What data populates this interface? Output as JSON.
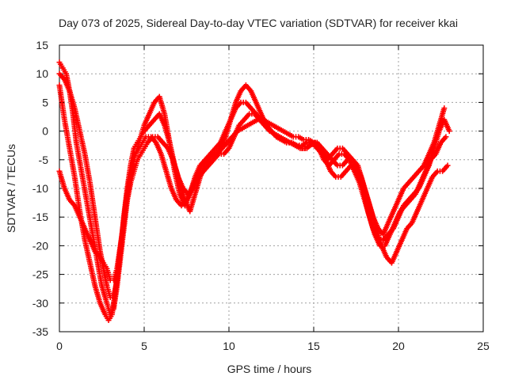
{
  "chart_data": {
    "type": "scatter",
    "title": "Day 073 of 2025, Sidereal Day-to-day VTEC variation (SDTVAR) for receiver kkai",
    "xlabel": "GPS time / hours",
    "ylabel": "SDTVAR / TECUs",
    "xlim": [
      0,
      25
    ],
    "ylim": [
      -35,
      15
    ],
    "xticks": [
      "0",
      "5",
      "10",
      "15",
      "20",
      "25"
    ],
    "yticks": [
      "-35",
      "-30",
      "-25",
      "-20",
      "-15",
      "-10",
      "-5",
      "0",
      "5",
      "10",
      "15"
    ],
    "grid": true,
    "marker": "plus",
    "color": "#ff0000",
    "series": [
      {
        "x": [
          0.0,
          0.3,
          0.6,
          0.9,
          1.2,
          1.5,
          1.8,
          2.1,
          2.4,
          2.7,
          2.9,
          3.1,
          3.3,
          3.5,
          3.7,
          3.9,
          4.1,
          4.3,
          4.5,
          4.7,
          4.9,
          5.1,
          5.4,
          5.7,
          6.0,
          6.3,
          6.6,
          6.9,
          7.2,
          7.5,
          7.8,
          8.1,
          8.4,
          8.7,
          9.0,
          9.3,
          9.6,
          9.9,
          10.2,
          10.5,
          10.8,
          11.1,
          11.4,
          11.7,
          12.0,
          12.3,
          12.6,
          12.9,
          13.2,
          13.5,
          13.8,
          14.1,
          14.4,
          14.7,
          15.0,
          15.3,
          15.6,
          15.9,
          16.2,
          16.5,
          16.8,
          17.1,
          17.4,
          17.7,
          18.0,
          18.3,
          18.6,
          18.9,
          19.2,
          19.5,
          19.8,
          20.1,
          20.4,
          20.7,
          21.0,
          21.3,
          21.6,
          21.9,
          22.2,
          22.5,
          22.8
        ],
        "y": [
          8,
          2,
          -3,
          -8,
          -14,
          -19,
          -23,
          -27,
          -30,
          -32,
          -33,
          -32,
          -28,
          -23,
          -18,
          -13,
          -9,
          -6,
          -4,
          -3,
          -2,
          -1,
          -1,
          -2,
          -4,
          -7,
          -10,
          -12,
          -13,
          -12,
          -10,
          -8,
          -6,
          -5,
          -4,
          -4,
          -3,
          -2,
          -1,
          0,
          0.5,
          1,
          1.5,
          2,
          2,
          1.5,
          1,
          0.5,
          0,
          -0.5,
          -1,
          -1,
          -1.5,
          -1.5,
          -2,
          -3,
          -5,
          -6,
          -5,
          -4,
          -4,
          -5,
          -7,
          -9,
          -12,
          -15,
          -18,
          -20,
          -20,
          -18,
          -16,
          -14,
          -13,
          -12,
          -11,
          -9,
          -7,
          -5,
          -4,
          -2,
          -1
        ]
      },
      {
        "x": [
          0.0,
          0.2,
          0.4,
          0.6,
          0.8,
          1.0,
          1.3,
          1.6,
          1.9,
          2.2,
          2.5,
          2.8,
          3.0,
          3.2,
          3.4,
          3.6,
          3.8,
          4.0,
          4.2,
          4.4,
          4.6,
          4.8,
          5.0,
          5.3,
          5.6,
          5.9,
          6.2,
          6.5,
          6.8,
          7.1,
          7.4,
          7.7,
          8.0,
          8.3,
          8.6,
          8.9,
          9.2,
          9.5,
          9.8,
          10.1,
          10.4,
          10.7,
          11.0,
          11.3,
          11.6,
          11.9,
          12.2,
          12.5,
          12.8,
          13.1,
          13.4,
          13.7,
          14.0,
          14.3,
          14.6,
          14.9,
          15.2,
          15.5,
          15.8,
          16.1,
          16.4,
          16.7,
          17.0,
          17.3,
          17.6,
          17.9,
          18.2,
          18.5,
          18.8,
          19.1,
          19.4,
          19.7,
          20.0,
          20.3,
          20.6,
          20.9,
          21.2,
          21.5,
          21.8,
          22.1,
          22.4,
          22.7,
          23.0
        ],
        "y": [
          12,
          11,
          10,
          7,
          3,
          -2,
          -7,
          -12,
          -17,
          -22,
          -27,
          -30,
          -32,
          -31,
          -27,
          -22,
          -17,
          -12,
          -8,
          -5,
          -3,
          -1,
          1,
          3,
          5,
          6,
          3,
          -2,
          -7,
          -11,
          -13,
          -11,
          -8,
          -6,
          -5,
          -4,
          -3,
          -2,
          0,
          2,
          4,
          5,
          5,
          4,
          3,
          2,
          1,
          0,
          -1,
          -1.5,
          -2,
          -2,
          -2.5,
          -2.5,
          -2,
          -2,
          -3,
          -4,
          -5,
          -4,
          -3,
          -3,
          -4,
          -5,
          -7,
          -10,
          -14,
          -17,
          -19,
          -19,
          -18,
          -17,
          -15,
          -13,
          -12,
          -11,
          -10,
          -8,
          -6,
          -3,
          0,
          2,
          0
        ]
      },
      {
        "x": [
          0.0,
          0.3,
          0.6,
          0.9,
          1.2,
          1.5,
          1.8,
          2.1,
          2.4,
          2.6,
          2.8,
          3.0,
          3.2,
          3.4,
          3.6,
          3.8,
          4.0,
          4.2,
          4.4,
          4.6,
          4.8,
          5.0,
          5.2,
          5.5,
          5.8,
          6.1,
          6.4,
          6.7,
          7.0,
          7.3,
          7.6,
          7.9,
          8.2,
          8.5,
          8.8,
          9.1,
          9.4,
          9.7,
          10.0,
          10.3,
          10.6,
          10.9,
          11.2,
          11.5,
          11.8,
          12.1,
          12.4,
          12.7,
          13.0,
          13.3,
          13.6,
          13.9,
          14.2,
          14.5,
          14.8,
          15.1,
          15.4,
          15.7,
          16.0,
          16.3,
          16.6,
          16.9,
          17.2,
          17.5,
          17.8,
          18.1,
          18.4,
          18.7,
          19.0,
          19.3,
          19.6,
          19.9,
          20.2,
          20.5,
          20.8,
          21.1,
          21.4,
          21.7,
          22.0,
          22.3,
          22.6,
          22.9
        ],
        "y": [
          -7,
          -10,
          -12,
          -13,
          -15,
          -17,
          -19,
          -21,
          -22,
          -23,
          -24,
          -26,
          -26,
          -24,
          -20,
          -16,
          -12,
          -9,
          -7,
          -5,
          -4,
          -3,
          -2,
          -1,
          -1,
          -2,
          -3,
          -5,
          -8,
          -10,
          -11,
          -10,
          -8,
          -7,
          -6,
          -5,
          -4,
          -4,
          -3,
          -1,
          1,
          2,
          3,
          3,
          2,
          1,
          0,
          -0.5,
          -1,
          -1.5,
          -2,
          -2.5,
          -3,
          -3,
          -2.5,
          -2,
          -3,
          -5,
          -7,
          -8,
          -8,
          -7,
          -6,
          -6,
          -8,
          -11,
          -14,
          -17,
          -20,
          -22,
          -23,
          -21,
          -19,
          -17,
          -16,
          -14,
          -12,
          -10,
          -8,
          -7,
          -7,
          -6
        ]
      },
      {
        "x": [
          0.0,
          0.3,
          0.6,
          0.9,
          1.2,
          1.5,
          1.8,
          2.0,
          2.2,
          2.4,
          2.6,
          2.8,
          3.0,
          3.2,
          3.4,
          3.6,
          3.8,
          4.0,
          4.2,
          4.4,
          4.6,
          4.8,
          5.0,
          5.3,
          5.6,
          5.9,
          6.2,
          6.5,
          6.8,
          7.1,
          7.4,
          7.7,
          8.0,
          8.3,
          8.6,
          8.9,
          9.2,
          9.5,
          9.8,
          10.1,
          10.4,
          10.7,
          11.0,
          11.3,
          11.6,
          11.9,
          12.2,
          12.5,
          12.8,
          13.1,
          13.4,
          13.7,
          14.0,
          14.3,
          14.6,
          14.9,
          15.2,
          15.5,
          15.8,
          16.1,
          16.4,
          16.7,
          17.0,
          17.3,
          17.6,
          17.9,
          18.2,
          18.5,
          18.8,
          19.1,
          19.4,
          19.7,
          20.0,
          20.3,
          20.6,
          20.9,
          21.2,
          21.5,
          21.8,
          22.1,
          22.4,
          22.7
        ],
        "y": [
          10,
          9,
          7,
          4,
          0,
          -4,
          -9,
          -13,
          -17,
          -21,
          -24,
          -27,
          -29,
          -29,
          -26,
          -21,
          -15,
          -10,
          -6,
          -3,
          -2,
          -1,
          0,
          1,
          2,
          3,
          1,
          -2,
          -6,
          -9,
          -12,
          -14,
          -11,
          -8,
          -6,
          -5,
          -4,
          -3,
          -1,
          2,
          5,
          7,
          8,
          7,
          5,
          3,
          1,
          0,
          -1,
          -1.5,
          -2,
          -2,
          -2.5,
          -3,
          -3,
          -2,
          -2,
          -3,
          -4,
          -5,
          -6,
          -6,
          -5,
          -5,
          -6,
          -9,
          -12,
          -15,
          -17,
          -18,
          -16,
          -14,
          -12,
          -10,
          -9,
          -8,
          -7,
          -6,
          -4,
          -2,
          1,
          4
        ]
      }
    ]
  }
}
